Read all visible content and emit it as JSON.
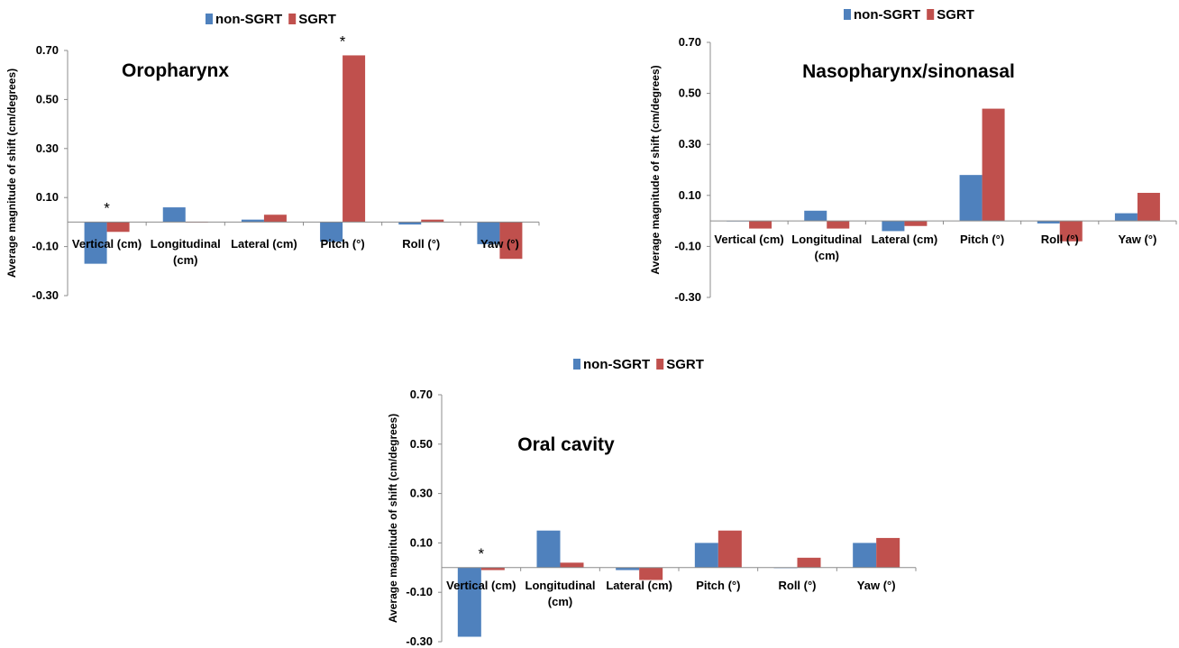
{
  "chart_data": [
    {
      "type": "bar",
      "title": "Oropharynx",
      "ylabel": "Average magnitude of shift (cm/degrees)",
      "ylim": [
        -0.3,
        0.7
      ],
      "yticks": [
        "0.70",
        "0.50",
        "0.30",
        "0.10",
        "-0.10",
        "-0.30"
      ],
      "categories": [
        [
          "Vertical (cm)"
        ],
        [
          "Longitudinal",
          "(cm)"
        ],
        [
          "Lateral (cm)"
        ],
        [
          "Pitch (°)"
        ],
        [
          "Roll (°)"
        ],
        [
          "Yaw (°)"
        ]
      ],
      "series": [
        {
          "name": "non-SGRT",
          "color": "#4f81bd",
          "values": [
            -0.17,
            0.06,
            0.01,
            -0.08,
            -0.01,
            -0.09
          ]
        },
        {
          "name": "SGRT",
          "color": "#c0504d",
          "values": [
            -0.04,
            0.0,
            0.03,
            0.68,
            0.01,
            -0.15
          ]
        }
      ],
      "significance": [
        {
          "category": 0,
          "label": "*"
        },
        {
          "category": 3,
          "label": "*"
        }
      ],
      "legend": "top",
      "grid": false
    },
    {
      "type": "bar",
      "title": "Nasopharynx/sinonasal",
      "ylabel": "Average magnitude of shift (cm/degrees)",
      "ylim": [
        -0.3,
        0.7
      ],
      "yticks": [
        "0.70",
        "0.50",
        "0.30",
        "0.10",
        "-0.10",
        "-0.30"
      ],
      "categories": [
        [
          "Vertical (cm)"
        ],
        [
          "Longitudinal",
          "(cm)"
        ],
        [
          "Lateral (cm)"
        ],
        [
          "Pitch (°)"
        ],
        [
          "Roll (°)"
        ],
        [
          "Yaw (°)"
        ]
      ],
      "series": [
        {
          "name": "non-SGRT",
          "color": "#4f81bd",
          "values": [
            0.0,
            0.04,
            -0.04,
            0.18,
            -0.01,
            0.03
          ]
        },
        {
          "name": "SGRT",
          "color": "#c0504d",
          "values": [
            -0.03,
            -0.03,
            -0.02,
            0.44,
            -0.08,
            0.11
          ]
        }
      ],
      "significance": [],
      "legend": "top",
      "grid": false
    },
    {
      "type": "bar",
      "title": "Oral cavity",
      "ylabel": "Average magnitude of shift (cm/degrees)",
      "ylim": [
        -0.3,
        0.7
      ],
      "yticks": [
        "0.70",
        "0.50",
        "0.30",
        "0.10",
        "-0.10",
        "-0.30"
      ],
      "categories": [
        [
          "Vertical (cm)"
        ],
        [
          "Longitudinal",
          "(cm)"
        ],
        [
          "Lateral (cm)"
        ],
        [
          "Pitch (°)"
        ],
        [
          "Roll (°)"
        ],
        [
          "Yaw (°)"
        ]
      ],
      "series": [
        {
          "name": "non-SGRT",
          "color": "#4f81bd",
          "values": [
            -0.28,
            0.15,
            -0.01,
            0.1,
            0.0,
            0.1
          ]
        },
        {
          "name": "SGRT",
          "color": "#c0504d",
          "values": [
            -0.01,
            0.02,
            -0.05,
            0.15,
            0.04,
            0.12
          ]
        }
      ],
      "significance": [
        {
          "category": 0,
          "label": "*"
        }
      ],
      "legend": "top",
      "grid": false
    }
  ]
}
